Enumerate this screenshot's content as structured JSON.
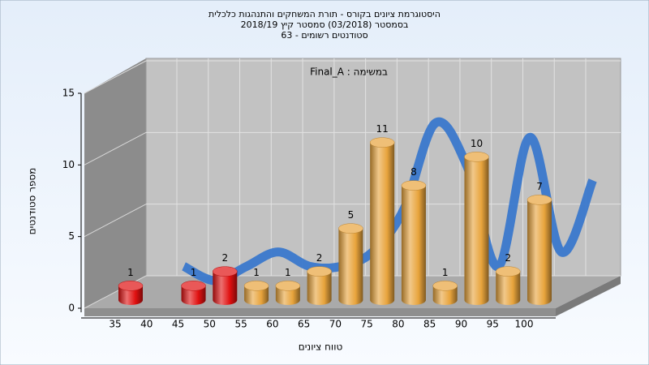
{
  "chart_data": {
    "type": "bar3d",
    "title": [
      "היסטוגרמת ציונים בקורס - תורת המשחקים והתנהגות כלכלית",
      "בסמסטר (03/2018) סמסטר קיץ 2018/19",
      "סטודנטים רשומים - 63"
    ],
    "annotation": "במשימה : Final_A",
    "ylabel": "מספר סטודנטים",
    "xlabel": "טווח ציונים",
    "categories": [
      "35",
      "40",
      "45",
      "50",
      "55",
      "60",
      "65",
      "70",
      "75",
      "80",
      "85",
      "90",
      "95",
      "100"
    ],
    "values": [
      1,
      0,
      1,
      2,
      1,
      1,
      2,
      5,
      11,
      8,
      1,
      10,
      2,
      7
    ],
    "colors": [
      "#e01010",
      "#e01010",
      "#e01010",
      "#e01010",
      "#e8a43c",
      "#e8a43c",
      "#e8a43c",
      "#e8a43c",
      "#e8a43c",
      "#e8a43c",
      "#e8a43c",
      "#e8a43c",
      "#e8a43c",
      "#e8a43c"
    ],
    "trend_color": "#3a78cc",
    "ylim": [
      0,
      15
    ],
    "yticks": [
      0,
      5,
      10,
      15
    ],
    "grid": true
  }
}
